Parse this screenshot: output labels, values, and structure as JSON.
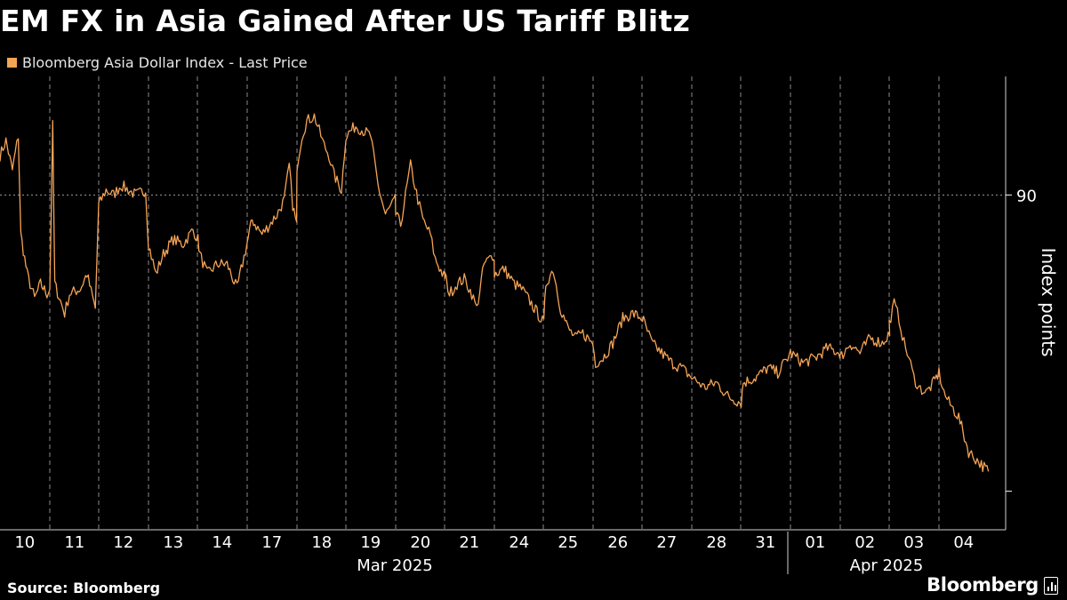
{
  "chart_data": {
    "type": "line",
    "title": "EM FX in Asia Gained After US Tariff Blitz",
    "series": [
      {
        "name": "Bloomberg Asia Dollar Index - Last Price",
        "color": "#f5a456",
        "points": [
          [
            "10",
            0.0,
            90.4
          ],
          [
            "10",
            0.12,
            90.55
          ],
          [
            "10",
            0.25,
            90.25
          ],
          [
            "10",
            0.37,
            90.6
          ],
          [
            "10",
            0.42,
            89.6
          ],
          [
            "10",
            0.55,
            89.2
          ],
          [
            "10",
            0.7,
            88.95
          ],
          [
            "10",
            0.82,
            89.1
          ],
          [
            "10",
            0.95,
            89.0
          ],
          [
            "11",
            0.0,
            89.05
          ],
          [
            "11",
            0.06,
            90.7
          ],
          [
            "11",
            0.1,
            89.1
          ],
          [
            "11",
            0.3,
            88.8
          ],
          [
            "11",
            0.4,
            89.0
          ],
          [
            "11",
            0.62,
            89.05
          ],
          [
            "11",
            0.75,
            89.2
          ],
          [
            "11",
            0.92,
            88.85
          ],
          [
            "12",
            0.0,
            89.9
          ],
          [
            "12",
            0.15,
            90.05
          ],
          [
            "12",
            0.3,
            90.0
          ],
          [
            "12",
            0.45,
            90.1
          ],
          [
            "12",
            0.75,
            90.0
          ],
          [
            "12",
            0.95,
            90.05
          ],
          [
            "13",
            0.0,
            89.5
          ],
          [
            "13",
            0.15,
            89.2
          ],
          [
            "13",
            0.3,
            89.4
          ],
          [
            "13",
            0.5,
            89.55
          ],
          [
            "13",
            0.7,
            89.5
          ],
          [
            "13",
            0.9,
            89.65
          ],
          [
            "13",
            1.0,
            89.55
          ],
          [
            "14",
            0.05,
            89.4
          ],
          [
            "14",
            0.2,
            89.2
          ],
          [
            "14",
            0.4,
            89.3
          ],
          [
            "14",
            0.6,
            89.3
          ],
          [
            "14",
            0.8,
            89.05
          ],
          [
            "14",
            1.0,
            89.5
          ],
          [
            "17",
            0.1,
            89.75
          ],
          [
            "17",
            0.3,
            89.6
          ],
          [
            "17",
            0.45,
            89.7
          ],
          [
            "17",
            0.6,
            89.8
          ],
          [
            "17",
            0.75,
            89.95
          ],
          [
            "17",
            0.85,
            90.3
          ],
          [
            "17",
            0.92,
            89.9
          ],
          [
            "17",
            1.0,
            89.7
          ],
          [
            "18",
            0.0,
            90.3
          ],
          [
            "18",
            0.1,
            90.6
          ],
          [
            "18",
            0.2,
            90.75
          ],
          [
            "18",
            0.35,
            90.8
          ],
          [
            "18",
            0.45,
            90.65
          ],
          [
            "18",
            0.55,
            90.5
          ],
          [
            "18",
            0.65,
            90.4
          ],
          [
            "18",
            0.75,
            90.2
          ],
          [
            "18",
            0.9,
            90.05
          ],
          [
            "19",
            0.0,
            90.6
          ],
          [
            "19",
            0.2,
            90.7
          ],
          [
            "19",
            0.5,
            90.6
          ],
          [
            "19",
            0.65,
            90.1
          ],
          [
            "19",
            0.8,
            89.8
          ],
          [
            "19",
            1.0,
            89.95
          ],
          [
            "20",
            0.0,
            89.8
          ],
          [
            "20",
            0.1,
            89.7
          ],
          [
            "20",
            0.2,
            90.0
          ],
          [
            "20",
            0.3,
            90.3
          ],
          [
            "20",
            0.45,
            89.95
          ],
          [
            "20",
            0.55,
            89.75
          ],
          [
            "20",
            0.7,
            89.6
          ],
          [
            "20",
            0.8,
            89.35
          ],
          [
            "20",
            1.0,
            89.15
          ],
          [
            "21",
            0.0,
            89.2
          ],
          [
            "21",
            0.1,
            89.0
          ],
          [
            "21",
            0.25,
            89.1
          ],
          [
            "21",
            0.4,
            89.15
          ],
          [
            "21",
            0.55,
            89.0
          ],
          [
            "21",
            0.65,
            88.85
          ],
          [
            "21",
            0.8,
            89.3
          ],
          [
            "21",
            1.0,
            89.4
          ],
          [
            "24",
            0.0,
            89.2
          ],
          [
            "24",
            0.2,
            89.25
          ],
          [
            "24",
            0.4,
            89.1
          ],
          [
            "24",
            0.55,
            89.05
          ],
          [
            "24",
            0.75,
            88.9
          ],
          [
            "24",
            1.0,
            88.7
          ],
          [
            "25",
            0.05,
            89.1
          ],
          [
            "25",
            0.2,
            89.25
          ],
          [
            "25",
            0.35,
            88.85
          ],
          [
            "25",
            0.5,
            88.65
          ],
          [
            "25",
            0.65,
            88.55
          ],
          [
            "25",
            0.8,
            88.6
          ],
          [
            "25",
            1.0,
            88.5
          ],
          [
            "26",
            0.05,
            88.3
          ],
          [
            "26",
            0.2,
            88.35
          ],
          [
            "26",
            0.4,
            88.5
          ],
          [
            "26",
            0.6,
            88.75
          ],
          [
            "26",
            0.8,
            88.8
          ],
          [
            "26",
            1.0,
            88.75
          ],
          [
            "27",
            0.05,
            88.7
          ],
          [
            "27",
            0.2,
            88.5
          ],
          [
            "27",
            0.4,
            88.4
          ],
          [
            "27",
            0.6,
            88.3
          ],
          [
            "27",
            0.8,
            88.25
          ],
          [
            "28",
            0.0,
            88.15
          ],
          [
            "28",
            0.15,
            88.1
          ],
          [
            "28",
            0.25,
            88.05
          ],
          [
            "28",
            0.5,
            88.1
          ],
          [
            "28",
            0.75,
            87.95
          ],
          [
            "28",
            1.0,
            87.9
          ],
          [
            "31",
            0.05,
            88.1
          ],
          [
            "31",
            0.3,
            88.15
          ],
          [
            "31",
            0.55,
            88.25
          ],
          [
            "31",
            0.75,
            88.2
          ],
          [
            "31",
            0.95,
            88.35
          ],
          [
            "01",
            0.0,
            88.4
          ],
          [
            "01",
            0.25,
            88.3
          ],
          [
            "01",
            0.5,
            88.35
          ],
          [
            "01",
            0.75,
            88.45
          ],
          [
            "01",
            1.0,
            88.4
          ],
          [
            "02",
            0.0,
            88.35
          ],
          [
            "02",
            0.2,
            88.5
          ],
          [
            "02",
            0.4,
            88.4
          ],
          [
            "02",
            0.6,
            88.55
          ],
          [
            "02",
            0.85,
            88.5
          ],
          [
            "02",
            1.0,
            88.6
          ],
          [
            "03",
            0.0,
            88.7
          ],
          [
            "03",
            0.1,
            88.9
          ],
          [
            "03",
            0.2,
            88.75
          ],
          [
            "03",
            0.3,
            88.5
          ],
          [
            "03",
            0.4,
            88.35
          ],
          [
            "03",
            0.5,
            88.15
          ],
          [
            "03",
            0.6,
            88.05
          ],
          [
            "03",
            0.75,
            88.0
          ],
          [
            "03",
            0.9,
            88.1
          ],
          [
            "04",
            0.0,
            88.2
          ],
          [
            "04",
            0.1,
            88.0
          ],
          [
            "04",
            0.2,
            87.9
          ],
          [
            "04",
            0.4,
            87.75
          ],
          [
            "04",
            0.6,
            87.4
          ],
          [
            "04",
            0.8,
            87.3
          ],
          [
            "04",
            1.0,
            87.2
          ]
        ]
      }
    ],
    "y_tick_values": [
      87,
      90
    ],
    "y_tick_labels": [
      "",
      "90"
    ],
    "reference_line": 90,
    "ylabel": "Index points",
    "ylim": [
      86.61,
      91.2
    ],
    "grid": "vertical dashed lines at day starts",
    "x_day_ticks": [
      "10",
      "11",
      "12",
      "13",
      "14",
      "17",
      "18",
      "19",
      "20",
      "21",
      "24",
      "25",
      "26",
      "27",
      "28",
      "31",
      "01",
      "02",
      "03",
      "04"
    ],
    "x_month_labels": [
      "Mar 2025",
      "Apr 2025"
    ],
    "colors": {
      "background": "#000000",
      "line": "#f5a456",
      "text": "#ffffff",
      "grid": "#8a8a8a"
    }
  },
  "legend": {
    "label": "Bloomberg Asia Dollar Index - Last Price"
  },
  "footer": {
    "source": "Source: Bloomberg",
    "brand": "Bloomberg"
  }
}
